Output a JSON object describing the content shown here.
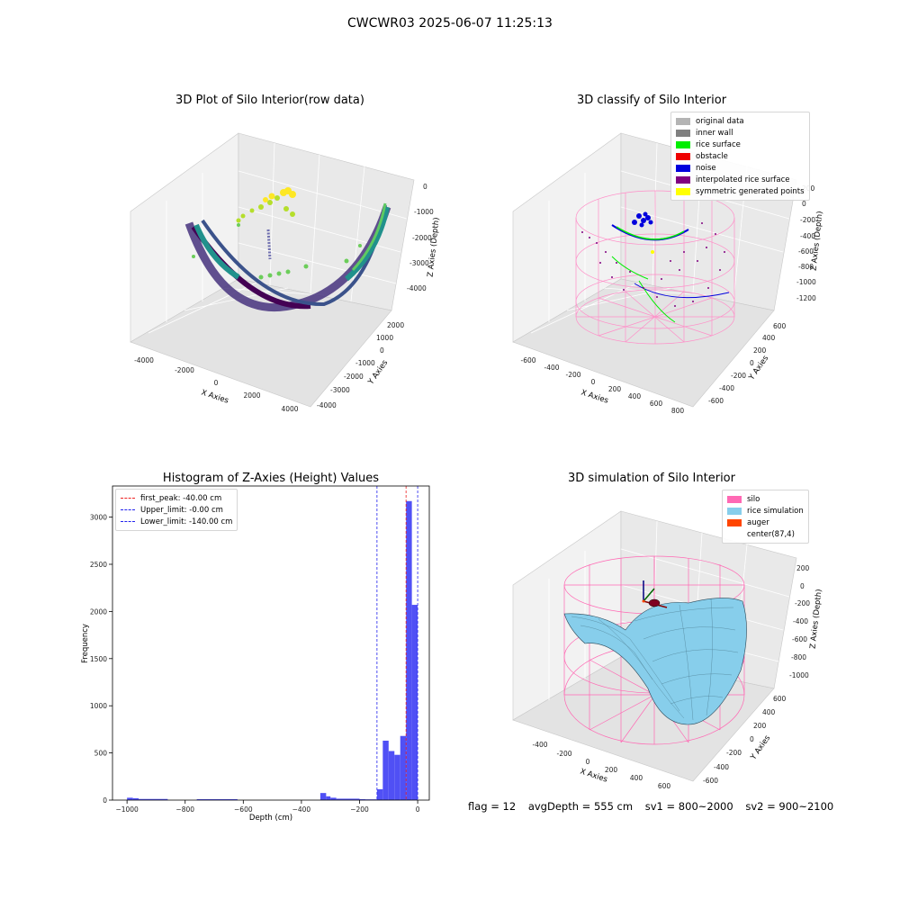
{
  "suptitle": "CWCWR03 2025-06-07 11:25:13",
  "footer": {
    "flag": "flag = 12",
    "avg": "avgDepth = 555 cm",
    "sv1": "sv1 = 800~2000",
    "sv2": "sv2 = 900~2100"
  },
  "chart_data": [
    {
      "type": "scatter",
      "title": "3D Plot of Silo Interior(row data)",
      "xlabel": "X Axies",
      "ylabel": "Y Axies",
      "zlabel": "Z Axies (Depth)",
      "xticks": [
        "-4000",
        "-2000",
        "0",
        "2000",
        "4000"
      ],
      "yticks": [
        "-4000",
        "-3000",
        "-2000",
        "-1000",
        "0",
        "1000",
        "2000"
      ],
      "zticks": [
        "0",
        "-1000",
        "-2000",
        "-3000",
        "-4000"
      ],
      "colormap": "viridis"
    },
    {
      "type": "scatter",
      "title": "3D classify of Silo Interior",
      "xlabel": "X Axies",
      "ylabel": "Y Axies",
      "zlabel": "Z Axies (Depth)",
      "xticks": [
        "-600",
        "-400",
        "-200",
        "0",
        "200",
        "400",
        "600",
        "800"
      ],
      "yticks": [
        "-600",
        "-400",
        "-200",
        "0",
        "200",
        "400",
        "600"
      ],
      "zticks": [
        "200",
        "0",
        "-200",
        "-400",
        "-600",
        "-800",
        "-1000",
        "-1200"
      ],
      "legend": [
        {
          "label": "original data",
          "color": "#b4b4b4"
        },
        {
          "label": "inner wall",
          "color": "#808080"
        },
        {
          "label": "rice surface",
          "color": "#00ee00"
        },
        {
          "label": "obstacle",
          "color": "#ee0000"
        },
        {
          "label": "noise",
          "color": "#0000dd"
        },
        {
          "label": "interpolated rice surface",
          "color": "#800080"
        },
        {
          "label": "symmetric generated points",
          "color": "#ffff00"
        }
      ]
    },
    {
      "type": "bar",
      "title": "Histogram of Z-Axies (Height) Values",
      "xlabel": "Depth (cm)",
      "ylabel": "Frequency",
      "xlim": [
        -1050,
        40
      ],
      "ylim": [
        0,
        3330
      ],
      "xticks": [
        -1000,
        -800,
        -600,
        -400,
        -200,
        0
      ],
      "yticks": [
        0,
        500,
        1000,
        1500,
        2000,
        2500,
        3000
      ],
      "bar_color": "#5050f5",
      "bins": [
        {
          "x0": -1000,
          "x1": -980,
          "value": 25
        },
        {
          "x0": -980,
          "x1": -960,
          "value": 20
        },
        {
          "x0": -960,
          "x1": -860,
          "value": 12
        },
        {
          "x0": -760,
          "x1": -620,
          "value": 10
        },
        {
          "x0": -335,
          "x1": -315,
          "value": 75
        },
        {
          "x0": -315,
          "x1": -300,
          "value": 40
        },
        {
          "x0": -300,
          "x1": -280,
          "value": 25
        },
        {
          "x0": -280,
          "x1": -200,
          "value": 15
        },
        {
          "x0": -200,
          "x1": -180,
          "value": 10
        },
        {
          "x0": -180,
          "x1": -140,
          "value": 8
        },
        {
          "x0": -140,
          "x1": -120,
          "value": 115
        },
        {
          "x0": -120,
          "x1": -100,
          "value": 630
        },
        {
          "x0": -100,
          "x1": -80,
          "value": 520
        },
        {
          "x0": -80,
          "x1": -60,
          "value": 480
        },
        {
          "x0": -60,
          "x1": -40,
          "value": 680
        },
        {
          "x0": -40,
          "x1": -20,
          "value": 3170
        },
        {
          "x0": -20,
          "x1": 0,
          "value": 2070
        }
      ],
      "vlines": [
        {
          "label": "first_peak: -40.00 cm",
          "x": -40,
          "color": "#ee2222"
        },
        {
          "label": "Upper_limit: -0.00 cm",
          "x": 0,
          "color": "#2222ee"
        },
        {
          "label": "Lower_limit: -140.00 cm",
          "x": -140,
          "color": "#2222ee"
        }
      ]
    },
    {
      "type": "surface",
      "title": "3D simulation of Silo Interior",
      "xlabel": "X Axies",
      "ylabel": "Y Axies",
      "zlabel": "Z Axies (Depth)",
      "xticks": [
        "-400",
        "-200",
        "0",
        "200",
        "400",
        "600"
      ],
      "yticks": [
        "-600",
        "-400",
        "-200",
        "0",
        "200",
        "400",
        "600"
      ],
      "zticks": [
        "200",
        "0",
        "-200",
        "-400",
        "-600",
        "-800",
        "-1000"
      ],
      "legend": [
        {
          "label": "silo",
          "color": "#ff69b4"
        },
        {
          "label": "rice simulation",
          "color": "#87ceeb"
        },
        {
          "label": "auger",
          "color": "#ff4500"
        },
        {
          "label": "center(87,4)",
          "color": "#ffffff"
        }
      ]
    }
  ]
}
